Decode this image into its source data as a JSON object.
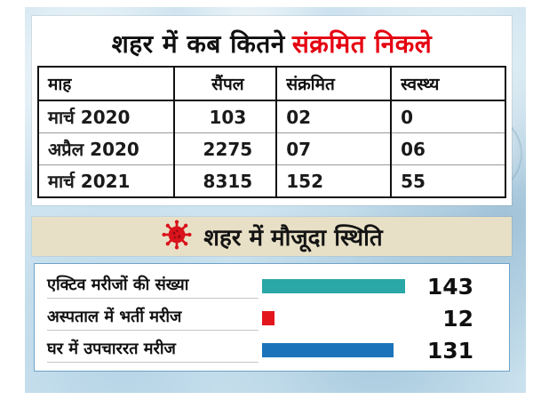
{
  "header": {
    "title_black": "शहर में कब कितने",
    "title_red": "संक्रमित निकले"
  },
  "table": {
    "headers": [
      "माह",
      "सैंपल",
      "संक्रमित",
      "स्वस्थ्य"
    ],
    "rows": [
      [
        "मार्च 2020",
        "103",
        "02",
        "0"
      ],
      [
        "अप्रैल 2020",
        "2275",
        "07",
        "06"
      ],
      [
        "मार्च 2021",
        "8315",
        "152",
        "55"
      ]
    ]
  },
  "current_status": {
    "title": "शहर में मौजूदा स्थिति"
  },
  "chart_data": {
    "type": "bar",
    "orientation": "horizontal",
    "title": "शहर में मौजूदा स्थिति",
    "categories": [
      "एक्टिव मरीजों की संख्या",
      "अस्पताल में भर्ती मरीज",
      "घर में उपचाररत मरीज"
    ],
    "values": [
      143,
      12,
      131
    ],
    "bar_colors": [
      "#2aa7a7",
      "#e3161e",
      "#1b74ba"
    ],
    "max_value": 150,
    "xlim": [
      0,
      150
    ],
    "grid": false,
    "legend": false
  },
  "colors": {
    "title_red": "#e50011",
    "beige_bg": "#e8e0c6",
    "virus_red": "#d9131c",
    "photo_blue": "#cde3ef"
  }
}
